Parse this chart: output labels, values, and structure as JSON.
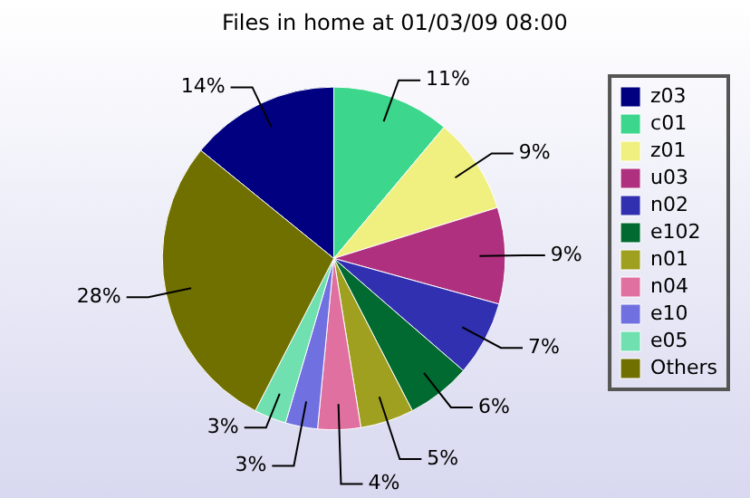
{
  "chart_data": {
    "type": "pie",
    "title": "Files in home at 01/03/09 08:00",
    "categories": [
      "z03",
      "c01",
      "z01",
      "u03",
      "n02",
      "e102",
      "n01",
      "n04",
      "e10",
      "e05",
      "Others"
    ],
    "values": [
      14,
      11,
      9,
      9,
      7,
      6,
      5,
      4,
      3,
      3,
      28
    ],
    "value_labels": [
      "14%",
      "11%",
      "9%",
      "9%",
      "7%",
      "6%",
      "5%",
      "4%",
      "3%",
      "3%",
      "28%"
    ],
    "colors": [
      "#000080",
      "#3cd68c",
      "#f0f080",
      "#b03080",
      "#3030b0",
      "#006a30",
      "#a0a020",
      "#e070a0",
      "#7070e0",
      "#70e0b0",
      "#707000"
    ],
    "legend": "right"
  }
}
